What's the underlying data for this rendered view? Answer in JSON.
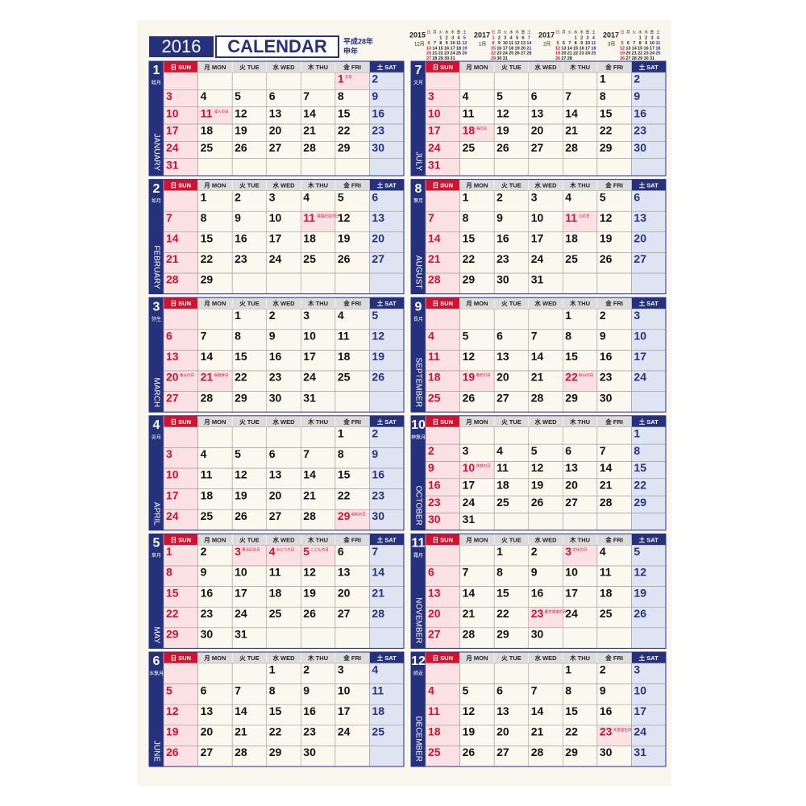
{
  "header": {
    "year": "2016",
    "title": "CALENDAR",
    "era": "平成28年",
    "zodiac": "申年"
  },
  "weekdays": [
    "日 SUN",
    "月 MON",
    "火 TUE",
    "水 WED",
    "木 THU",
    "金 FRI",
    "土 SAT"
  ],
  "mini_weekdays": [
    "日",
    "月",
    "火",
    "水",
    "木",
    "金",
    "土"
  ],
  "mini_calendars": [
    {
      "year": "2015",
      "month": "12月",
      "weeks": [
        [
          null,
          null,
          1,
          2,
          3,
          4,
          5
        ],
        [
          6,
          7,
          8,
          9,
          10,
          11,
          12
        ],
        [
          13,
          14,
          15,
          16,
          17,
          18,
          19
        ],
        [
          20,
          21,
          22,
          23,
          24,
          25,
          26
        ],
        [
          27,
          28,
          29,
          30,
          31,
          null,
          null
        ]
      ]
    },
    {
      "year": "2017",
      "month": "1月",
      "weeks": [
        [
          1,
          2,
          3,
          4,
          5,
          6,
          7
        ],
        [
          8,
          9,
          10,
          11,
          12,
          13,
          14
        ],
        [
          15,
          16,
          17,
          18,
          19,
          20,
          21
        ],
        [
          22,
          23,
          24,
          25,
          26,
          27,
          28
        ],
        [
          29,
          30,
          31,
          null,
          null,
          null,
          null
        ]
      ]
    },
    {
      "year": "2017",
      "month": "2月",
      "weeks": [
        [
          null,
          null,
          null,
          1,
          2,
          3,
          4
        ],
        [
          5,
          6,
          7,
          8,
          9,
          10,
          11
        ],
        [
          12,
          13,
          14,
          15,
          16,
          17,
          18
        ],
        [
          19,
          20,
          21,
          22,
          23,
          24,
          25
        ],
        [
          26,
          27,
          28,
          null,
          null,
          null,
          null
        ]
      ]
    },
    {
      "year": "2017",
      "month": "3月",
      "weeks": [
        [
          null,
          null,
          null,
          1,
          2,
          3,
          4
        ],
        [
          5,
          6,
          7,
          8,
          9,
          10,
          11
        ],
        [
          12,
          13,
          14,
          15,
          16,
          17,
          18
        ],
        [
          19,
          20,
          21,
          22,
          23,
          24,
          25
        ],
        [
          26,
          27,
          28,
          29,
          30,
          31,
          null
        ]
      ]
    }
  ],
  "months": [
    {
      "number": "1",
      "jp": "睦月",
      "name": "JANUARY",
      "weeks": [
        [
          null,
          null,
          null,
          null,
          null,
          1,
          2
        ],
        [
          3,
          4,
          5,
          6,
          7,
          8,
          9
        ],
        [
          10,
          11,
          12,
          13,
          14,
          15,
          16
        ],
        [
          17,
          18,
          19,
          20,
          21,
          22,
          23
        ],
        [
          24,
          25,
          26,
          27,
          28,
          29,
          30
        ],
        [
          31,
          null,
          null,
          null,
          null,
          null,
          null
        ]
      ],
      "holidays": [
        {
          "day": 1,
          "name": "元日"
        },
        {
          "day": 11,
          "name": "成人の日"
        }
      ]
    },
    {
      "number": "2",
      "jp": "如月",
      "name": "FEBRUARY",
      "weeks": [
        [
          null,
          1,
          2,
          3,
          4,
          5,
          6
        ],
        [
          7,
          8,
          9,
          10,
          11,
          12,
          13
        ],
        [
          14,
          15,
          16,
          17,
          18,
          19,
          20
        ],
        [
          21,
          22,
          23,
          24,
          25,
          26,
          27
        ],
        [
          28,
          29,
          null,
          null,
          null,
          null,
          null
        ]
      ],
      "holidays": [
        {
          "day": 11,
          "name": "建国記念の日"
        }
      ]
    },
    {
      "number": "3",
      "jp": "弥生",
      "name": "MARCH",
      "weeks": [
        [
          null,
          null,
          1,
          2,
          3,
          4,
          5
        ],
        [
          6,
          7,
          8,
          9,
          10,
          11,
          12
        ],
        [
          13,
          14,
          15,
          16,
          17,
          18,
          19
        ],
        [
          20,
          21,
          22,
          23,
          24,
          25,
          26
        ],
        [
          27,
          28,
          29,
          30,
          31,
          null,
          null
        ]
      ],
      "holidays": [
        {
          "day": 20,
          "name": "春分の日"
        },
        {
          "day": 21,
          "name": "振替休日"
        }
      ]
    },
    {
      "number": "4",
      "jp": "卯月",
      "name": "APRIL",
      "weeks": [
        [
          null,
          null,
          null,
          null,
          null,
          1,
          2
        ],
        [
          3,
          4,
          5,
          6,
          7,
          8,
          9
        ],
        [
          10,
          11,
          12,
          13,
          14,
          15,
          16
        ],
        [
          17,
          18,
          19,
          20,
          21,
          22,
          23
        ],
        [
          24,
          25,
          26,
          27,
          28,
          29,
          30
        ]
      ],
      "holidays": [
        {
          "day": 29,
          "name": "昭和の日"
        }
      ]
    },
    {
      "number": "5",
      "jp": "皐月",
      "name": "MAY",
      "weeks": [
        [
          1,
          2,
          3,
          4,
          5,
          6,
          7
        ],
        [
          8,
          9,
          10,
          11,
          12,
          13,
          14
        ],
        [
          15,
          16,
          17,
          18,
          19,
          20,
          21
        ],
        [
          22,
          23,
          24,
          25,
          26,
          27,
          28
        ],
        [
          29,
          30,
          31,
          null,
          null,
          null,
          null
        ]
      ],
      "holidays": [
        {
          "day": 3,
          "name": "憲法記念日"
        },
        {
          "day": 4,
          "name": "みどりの日"
        },
        {
          "day": 5,
          "name": "こどもの日"
        }
      ]
    },
    {
      "number": "6",
      "jp": "水無月",
      "name": "JUNE",
      "weeks": [
        [
          null,
          null,
          null,
          1,
          2,
          3,
          4
        ],
        [
          5,
          6,
          7,
          8,
          9,
          10,
          11
        ],
        [
          12,
          13,
          14,
          15,
          16,
          17,
          18
        ],
        [
          19,
          20,
          21,
          22,
          23,
          24,
          25
        ],
        [
          26,
          27,
          28,
          29,
          30,
          null,
          null
        ]
      ],
      "holidays": []
    },
    {
      "number": "7",
      "jp": "文月",
      "name": "JULY",
      "weeks": [
        [
          null,
          null,
          null,
          null,
          null,
          1,
          2
        ],
        [
          3,
          4,
          5,
          6,
          7,
          8,
          9
        ],
        [
          10,
          11,
          12,
          13,
          14,
          15,
          16
        ],
        [
          17,
          18,
          19,
          20,
          21,
          22,
          23
        ],
        [
          24,
          25,
          26,
          27,
          28,
          29,
          30
        ],
        [
          31,
          null,
          null,
          null,
          null,
          null,
          null
        ]
      ],
      "holidays": [
        {
          "day": 18,
          "name": "海の日"
        }
      ]
    },
    {
      "number": "8",
      "jp": "葉月",
      "name": "AUGUST",
      "weeks": [
        [
          null,
          1,
          2,
          3,
          4,
          5,
          6
        ],
        [
          7,
          8,
          9,
          10,
          11,
          12,
          13
        ],
        [
          14,
          15,
          16,
          17,
          18,
          19,
          20
        ],
        [
          21,
          22,
          23,
          24,
          25,
          26,
          27
        ],
        [
          28,
          29,
          30,
          31,
          null,
          null,
          null
        ]
      ],
      "holidays": [
        {
          "day": 11,
          "name": "山の日"
        }
      ]
    },
    {
      "number": "9",
      "jp": "長月",
      "name": "SEPTEMBER",
      "weeks": [
        [
          null,
          null,
          null,
          null,
          1,
          2,
          3
        ],
        [
          4,
          5,
          6,
          7,
          8,
          9,
          10
        ],
        [
          11,
          12,
          13,
          14,
          15,
          16,
          17
        ],
        [
          18,
          19,
          20,
          21,
          22,
          23,
          24
        ],
        [
          25,
          26,
          27,
          28,
          29,
          30,
          null
        ]
      ],
      "holidays": [
        {
          "day": 19,
          "name": "敬老の日"
        },
        {
          "day": 22,
          "name": "秋分の日"
        }
      ]
    },
    {
      "number": "10",
      "jp": "神無月",
      "name": "OCTOBER",
      "weeks": [
        [
          null,
          null,
          null,
          null,
          null,
          null,
          1
        ],
        [
          2,
          3,
          4,
          5,
          6,
          7,
          8
        ],
        [
          9,
          10,
          11,
          12,
          13,
          14,
          15
        ],
        [
          16,
          17,
          18,
          19,
          20,
          21,
          22
        ],
        [
          23,
          24,
          25,
          26,
          27,
          28,
          29
        ],
        [
          30,
          31,
          null,
          null,
          null,
          null,
          null
        ]
      ],
      "holidays": [
        {
          "day": 10,
          "name": "体育の日"
        }
      ]
    },
    {
      "number": "11",
      "jp": "霜月",
      "name": "NOVEMBER",
      "weeks": [
        [
          null,
          null,
          1,
          2,
          3,
          4,
          5
        ],
        [
          6,
          7,
          8,
          9,
          10,
          11,
          12
        ],
        [
          13,
          14,
          15,
          16,
          17,
          18,
          19
        ],
        [
          20,
          21,
          22,
          23,
          24,
          25,
          26
        ],
        [
          27,
          28,
          29,
          30,
          null,
          null,
          null
        ]
      ],
      "holidays": [
        {
          "day": 3,
          "name": "文化の日"
        },
        {
          "day": 23,
          "name": "勤労感謝の日"
        }
      ]
    },
    {
      "number": "12",
      "jp": "師走",
      "name": "DECEMBER",
      "weeks": [
        [
          null,
          null,
          null,
          null,
          1,
          2,
          3
        ],
        [
          4,
          5,
          6,
          7,
          8,
          9,
          10
        ],
        [
          11,
          12,
          13,
          14,
          15,
          16,
          17
        ],
        [
          18,
          19,
          20,
          21,
          22,
          23,
          24
        ],
        [
          25,
          26,
          27,
          28,
          29,
          30,
          31
        ]
      ],
      "holidays": [
        {
          "day": 23,
          "name": "天皇誕生日"
        }
      ]
    }
  ]
}
